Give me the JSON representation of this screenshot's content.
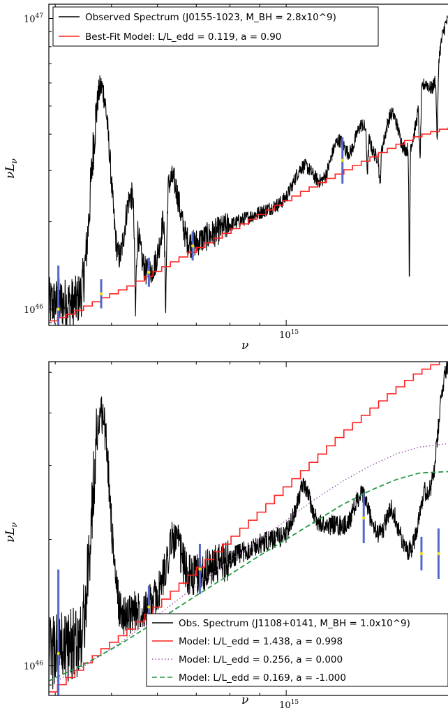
{
  "chart_data": [
    {
      "type": "line",
      "xlabel": "ν",
      "ylabel": "νLν",
      "x_scale": "log",
      "y_scale": "log",
      "xlim": [
        390000000000000.0,
        1900000000000000.0
      ],
      "ylim": [
        8.8e+45,
        1.12e+47
      ],
      "x_ticks": [
        {
          "value": 1000000000000000.0,
          "base": "10",
          "exp": "15"
        }
      ],
      "y_ticks": [
        {
          "value": 1e+46,
          "base": "10",
          "exp": "46"
        },
        {
          "value": 1e+47,
          "base": "10",
          "exp": "47"
        }
      ],
      "legend_position": "top-left",
      "series": [
        {
          "name": "Observed Spectrum (J0155-1023, M_BH = 2.8x10^9)",
          "style": "solid",
          "color": "#000000",
          "continuum": [
            [
              390000000000000.0,
              1.05e+46
            ],
            [
              430000000000000.0,
              1.05e+46
            ],
            [
              470000000000000.0,
              1.12e+46
            ],
            [
              520000000000000.0,
              1.2e+46
            ],
            [
              580000000000000.0,
              1.32e+46
            ],
            [
              650000000000000.0,
              1.55e+46
            ],
            [
              720000000000000.0,
              1.75e+46
            ],
            [
              800000000000000.0,
              1.95e+46
            ],
            [
              900000000000000.0,
              2.15e+46
            ],
            [
              1000000000000000.0,
              2.35e+46
            ],
            [
              1100000000000000.0,
              2.55e+46
            ],
            [
              1200000000000000.0,
              2.75e+46
            ],
            [
              1300000000000000.0,
              2.95e+46
            ],
            [
              1450000000000000.0,
              3.2e+46
            ],
            [
              1600000000000000.0,
              3.45e+46
            ],
            [
              1750000000000000.0,
              3.75e+46
            ],
            [
              1900000000000000.0,
              4e+46
            ]
          ],
          "emission_lines": [
            [
              480000000000000.0,
              5.8e+46,
              0.012
            ],
            [
              540000000000000.0,
              2.45e+46,
              0.01
            ],
            [
              635000000000000.0,
              2.8e+46,
              0.012
            ],
            [
              1070000000000000.0,
              3.1e+46,
              0.015
            ],
            [
              1230000000000000.0,
              3.8e+46,
              0.012
            ],
            [
              1350000000000000.0,
              4.3e+46,
              0.012
            ],
            [
              1520000000000000.0,
              4.7e+46,
              0.01
            ],
            [
              1730000000000000.0,
              5.8e+46,
              0.01
            ],
            [
              1900000000000000.0,
              9.8e+46,
              0.015
            ]
          ],
          "absorption_lines": [
            [
              550000000000000.0,
              9.3e+45,
              0.004
            ],
            [
              620000000000000.0,
              9.8e+45,
              0.004
            ],
            [
              1380000000000000.0,
              2.9e+46,
              0.003
            ],
            [
              1450000000000000.0,
              2.6e+46,
              0.003
            ],
            [
              1630000000000000.0,
              9.6e+45,
              0.002
            ],
            [
              1700000000000000.0,
              3.1e+46,
              0.003
            ],
            [
              1820000000000000.0,
              3.6e+46,
              0.003
            ]
          ]
        },
        {
          "name": "Best-Fit Model: L/L_edd = 0.119, a = 0.90",
          "style": "steps",
          "color": "#ff2020",
          "points": [
            [
              390000000000000.0,
              9e+45
            ],
            [
              430000000000000.0,
              9.7e+45
            ],
            [
              480000000000000.0,
              1.08e+46
            ],
            [
              540000000000000.0,
              1.2e+46
            ],
            [
              600000000000000.0,
              1.35e+46
            ],
            [
              700000000000000.0,
              1.6e+46
            ],
            [
              800000000000000.0,
              1.85e+46
            ],
            [
              900000000000000.0,
              2.1e+46
            ],
            [
              1000000000000000.0,
              2.35e+46
            ],
            [
              1100000000000000.0,
              2.6e+46
            ],
            [
              1250000000000000.0,
              2.95e+46
            ],
            [
              1400000000000000.0,
              3.3e+46
            ],
            [
              1550000000000000.0,
              3.65e+46
            ],
            [
              1700000000000000.0,
              3.95e+46
            ],
            [
              1900000000000000.0,
              4.2e+46
            ]
          ]
        }
      ],
      "error_bars": [
        [
          405000000000000.0,
          1e+46,
          0.15
        ],
        [
          480000000000000.0,
          1.13e+46,
          0.05
        ],
        [
          580000000000000.0,
          1.34e+46,
          0.05
        ],
        [
          690000000000000.0,
          1.65e+46,
          0.05
        ],
        [
          1250000000000000.0,
          3.25e+46,
          0.08
        ]
      ]
    },
    {
      "type": "line",
      "xlabel": "ν",
      "ylabel": "νLν",
      "x_scale": "log",
      "y_scale": "log",
      "xlim": [
        390000000000000.0,
        1900000000000000.0
      ],
      "ylim": [
        8.5e+45,
        5.3e+46
      ],
      "x_ticks": [
        {
          "value": 1000000000000000.0,
          "base": "10",
          "exp": "15"
        }
      ],
      "y_ticks": [
        {
          "value": 1e+46,
          "base": "10",
          "exp": "46"
        }
      ],
      "legend_position": "bottom-right",
      "series": [
        {
          "name": "Obs. Spectrum (J1108+0141, M_BH = 1.0x10^9)",
          "style": "solid",
          "color": "#000000",
          "continuum": [
            [
              390000000000000.0,
              1.07e+46
            ],
            [
              430000000000000.0,
              1.12e+46
            ],
            [
              470000000000000.0,
              1.22e+46
            ],
            [
              520000000000000.0,
              1.3e+46
            ],
            [
              580000000000000.0,
              1.4e+46
            ],
            [
              650000000000000.0,
              1.55e+46
            ],
            [
              720000000000000.0,
              1.68e+46
            ],
            [
              800000000000000.0,
              1.8e+46
            ],
            [
              900000000000000.0,
              1.95e+46
            ],
            [
              1000000000000000.0,
              2.05e+46
            ],
            [
              1100000000000000.0,
              2.12e+46
            ],
            [
              1200000000000000.0,
              2.17e+46
            ],
            [
              1300000000000000.0,
              2.12e+46
            ],
            [
              1450000000000000.0,
              2e+46
            ],
            [
              1600000000000000.0,
              1.88e+46
            ],
            [
              1750000000000000.0,
              1.8e+46
            ],
            [
              1900000000000000.0,
              1.9e+46
            ]
          ],
          "emission_lines": [
            [
              480000000000000.0,
              4e+46,
              0.012
            ],
            [
              640000000000000.0,
              2e+46,
              0.012
            ],
            [
              1070000000000000.0,
              2.65e+46,
              0.012
            ],
            [
              1350000000000000.0,
              2.55e+46,
              0.012
            ],
            [
              1520000000000000.0,
              2.35e+46,
              0.01
            ],
            [
              1730000000000000.0,
              2.5e+46,
              0.01
            ],
            [
              1900000000000000.0,
              5.2e+46,
              0.015
            ]
          ]
        },
        {
          "name": "Model: L/L_edd = 1.438, a = 0.998",
          "style": "steps",
          "color": "#ff2020",
          "points": [
            [
              390000000000000.0,
              8.5e+45
            ],
            [
              430000000000000.0,
              9.5e+45
            ],
            [
              480000000000000.0,
              1.08e+46
            ],
            [
              540000000000000.0,
              1.22e+46
            ],
            [
              600000000000000.0,
              1.38e+46
            ],
            [
              700000000000000.0,
              1.68e+46
            ],
            [
              800000000000000.0,
              1.98e+46
            ],
            [
              900000000000000.0,
              2.3e+46
            ],
            [
              1000000000000000.0,
              2.65e+46
            ],
            [
              1100000000000000.0,
              3e+46
            ],
            [
              1250000000000000.0,
              3.55e+46
            ],
            [
              1400000000000000.0,
              4.05e+46
            ],
            [
              1550000000000000.0,
              4.55e+46
            ],
            [
              1700000000000000.0,
              5e+46
            ],
            [
              1900000000000000.0,
              5.4e+46
            ]
          ]
        },
        {
          "name": "Model: L/L_edd = 0.256, a = 0.000",
          "style": "dotted",
          "color": "#9955aa",
          "points": [
            [
              390000000000000.0,
              9e+45
            ],
            [
              450000000000000.0,
              1e+46
            ],
            [
              520000000000000.0,
              1.14e+46
            ],
            [
              600000000000000.0,
              1.32e+46
            ],
            [
              700000000000000.0,
              1.55e+46
            ],
            [
              800000000000000.0,
              1.78e+46
            ],
            [
              900000000000000.0,
              2e+46
            ],
            [
              1000000000000000.0,
              2.22e+46
            ],
            [
              1100000000000000.0,
              2.45e+46
            ],
            [
              1250000000000000.0,
              2.75e+46
            ],
            [
              1400000000000000.0,
              3e+46
            ],
            [
              1550000000000000.0,
              3.2e+46
            ],
            [
              1700000000000000.0,
              3.32e+46
            ],
            [
              1900000000000000.0,
              3.38e+46
            ]
          ]
        },
        {
          "name": "Model: L/L_edd = 0.169, a = -1.000",
          "style": "dashed",
          "color": "#229944",
          "points": [
            [
              390000000000000.0,
              9.2e+45
            ],
            [
              450000000000000.0,
              1.01e+46
            ],
            [
              520000000000000.0,
              1.13e+46
            ],
            [
              600000000000000.0,
              1.28e+46
            ],
            [
              700000000000000.0,
              1.47e+46
            ],
            [
              800000000000000.0,
              1.65e+46
            ],
            [
              900000000000000.0,
              1.83e+46
            ],
            [
              1000000000000000.0,
              2e+46
            ],
            [
              1100000000000000.0,
              2.17e+46
            ],
            [
              1250000000000000.0,
              2.42e+46
            ],
            [
              1400000000000000.0,
              2.62e+46
            ],
            [
              1550000000000000.0,
              2.78e+46
            ],
            [
              1700000000000000.0,
              2.88e+46
            ],
            [
              1900000000000000.0,
              2.9e+46
            ]
          ]
        }
      ],
      "error_bars": [
        [
          405000000000000.0,
          1.07e+46,
          0.2
        ],
        [
          580000000000000.0,
          1.38e+46,
          0.05
        ],
        [
          710000000000000.0,
          1.7e+46,
          0.06
        ],
        [
          1360000000000000.0,
          2.25e+46,
          0.06
        ],
        [
          1710000000000000.0,
          1.85e+46,
          0.04
        ],
        [
          1830000000000000.0,
          1.85e+46,
          0.06
        ]
      ]
    }
  ]
}
